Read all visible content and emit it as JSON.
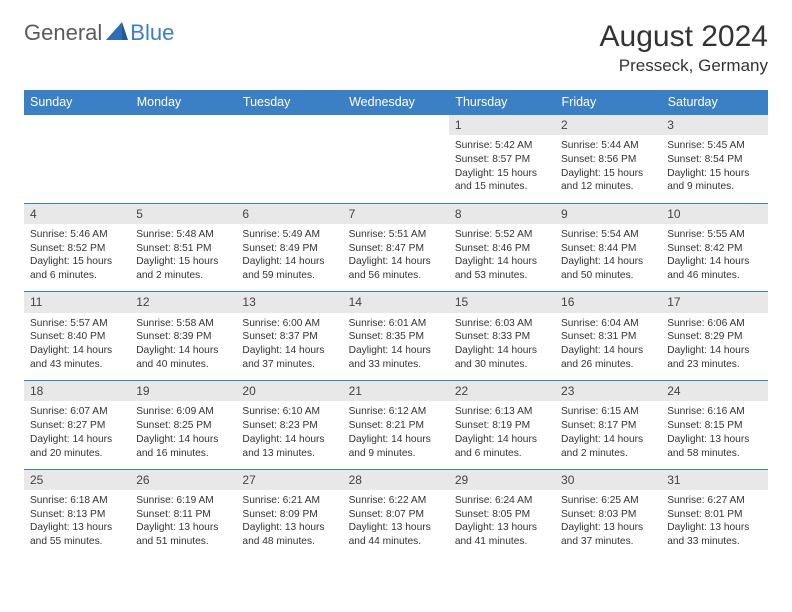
{
  "brand": {
    "general": "General",
    "blue": "Blue"
  },
  "title": "August 2024",
  "location": "Presseck, Germany",
  "colors": {
    "header_bg": "#3b7fc4",
    "header_text": "#ffffff",
    "daynum_bg": "#e8e8e8",
    "border": "#3b7fc4",
    "text": "#333333",
    "logo_gray": "#5a5a5a",
    "logo_blue": "#3b7fc4",
    "page_bg": "#ffffff"
  },
  "daysOfWeek": [
    "Sunday",
    "Monday",
    "Tuesday",
    "Wednesday",
    "Thursday",
    "Friday",
    "Saturday"
  ],
  "weeks": [
    [
      null,
      null,
      null,
      null,
      {
        "n": "1",
        "sr": "5:42 AM",
        "ss": "8:57 PM",
        "dl": "15 hours and 15 minutes."
      },
      {
        "n": "2",
        "sr": "5:44 AM",
        "ss": "8:56 PM",
        "dl": "15 hours and 12 minutes."
      },
      {
        "n": "3",
        "sr": "5:45 AM",
        "ss": "8:54 PM",
        "dl": "15 hours and 9 minutes."
      }
    ],
    [
      {
        "n": "4",
        "sr": "5:46 AM",
        "ss": "8:52 PM",
        "dl": "15 hours and 6 minutes."
      },
      {
        "n": "5",
        "sr": "5:48 AM",
        "ss": "8:51 PM",
        "dl": "15 hours and 2 minutes."
      },
      {
        "n": "6",
        "sr": "5:49 AM",
        "ss": "8:49 PM",
        "dl": "14 hours and 59 minutes."
      },
      {
        "n": "7",
        "sr": "5:51 AM",
        "ss": "8:47 PM",
        "dl": "14 hours and 56 minutes."
      },
      {
        "n": "8",
        "sr": "5:52 AM",
        "ss": "8:46 PM",
        "dl": "14 hours and 53 minutes."
      },
      {
        "n": "9",
        "sr": "5:54 AM",
        "ss": "8:44 PM",
        "dl": "14 hours and 50 minutes."
      },
      {
        "n": "10",
        "sr": "5:55 AM",
        "ss": "8:42 PM",
        "dl": "14 hours and 46 minutes."
      }
    ],
    [
      {
        "n": "11",
        "sr": "5:57 AM",
        "ss": "8:40 PM",
        "dl": "14 hours and 43 minutes."
      },
      {
        "n": "12",
        "sr": "5:58 AM",
        "ss": "8:39 PM",
        "dl": "14 hours and 40 minutes."
      },
      {
        "n": "13",
        "sr": "6:00 AM",
        "ss": "8:37 PM",
        "dl": "14 hours and 37 minutes."
      },
      {
        "n": "14",
        "sr": "6:01 AM",
        "ss": "8:35 PM",
        "dl": "14 hours and 33 minutes."
      },
      {
        "n": "15",
        "sr": "6:03 AM",
        "ss": "8:33 PM",
        "dl": "14 hours and 30 minutes."
      },
      {
        "n": "16",
        "sr": "6:04 AM",
        "ss": "8:31 PM",
        "dl": "14 hours and 26 minutes."
      },
      {
        "n": "17",
        "sr": "6:06 AM",
        "ss": "8:29 PM",
        "dl": "14 hours and 23 minutes."
      }
    ],
    [
      {
        "n": "18",
        "sr": "6:07 AM",
        "ss": "8:27 PM",
        "dl": "14 hours and 20 minutes."
      },
      {
        "n": "19",
        "sr": "6:09 AM",
        "ss": "8:25 PM",
        "dl": "14 hours and 16 minutes."
      },
      {
        "n": "20",
        "sr": "6:10 AM",
        "ss": "8:23 PM",
        "dl": "14 hours and 13 minutes."
      },
      {
        "n": "21",
        "sr": "6:12 AM",
        "ss": "8:21 PM",
        "dl": "14 hours and 9 minutes."
      },
      {
        "n": "22",
        "sr": "6:13 AM",
        "ss": "8:19 PM",
        "dl": "14 hours and 6 minutes."
      },
      {
        "n": "23",
        "sr": "6:15 AM",
        "ss": "8:17 PM",
        "dl": "14 hours and 2 minutes."
      },
      {
        "n": "24",
        "sr": "6:16 AM",
        "ss": "8:15 PM",
        "dl": "13 hours and 58 minutes."
      }
    ],
    [
      {
        "n": "25",
        "sr": "6:18 AM",
        "ss": "8:13 PM",
        "dl": "13 hours and 55 minutes."
      },
      {
        "n": "26",
        "sr": "6:19 AM",
        "ss": "8:11 PM",
        "dl": "13 hours and 51 minutes."
      },
      {
        "n": "27",
        "sr": "6:21 AM",
        "ss": "8:09 PM",
        "dl": "13 hours and 48 minutes."
      },
      {
        "n": "28",
        "sr": "6:22 AM",
        "ss": "8:07 PM",
        "dl": "13 hours and 44 minutes."
      },
      {
        "n": "29",
        "sr": "6:24 AM",
        "ss": "8:05 PM",
        "dl": "13 hours and 41 minutes."
      },
      {
        "n": "30",
        "sr": "6:25 AM",
        "ss": "8:03 PM",
        "dl": "13 hours and 37 minutes."
      },
      {
        "n": "31",
        "sr": "6:27 AM",
        "ss": "8:01 PM",
        "dl": "13 hours and 33 minutes."
      }
    ]
  ],
  "labels": {
    "sunrise": "Sunrise:",
    "sunset": "Sunset:",
    "daylight": "Daylight:"
  }
}
